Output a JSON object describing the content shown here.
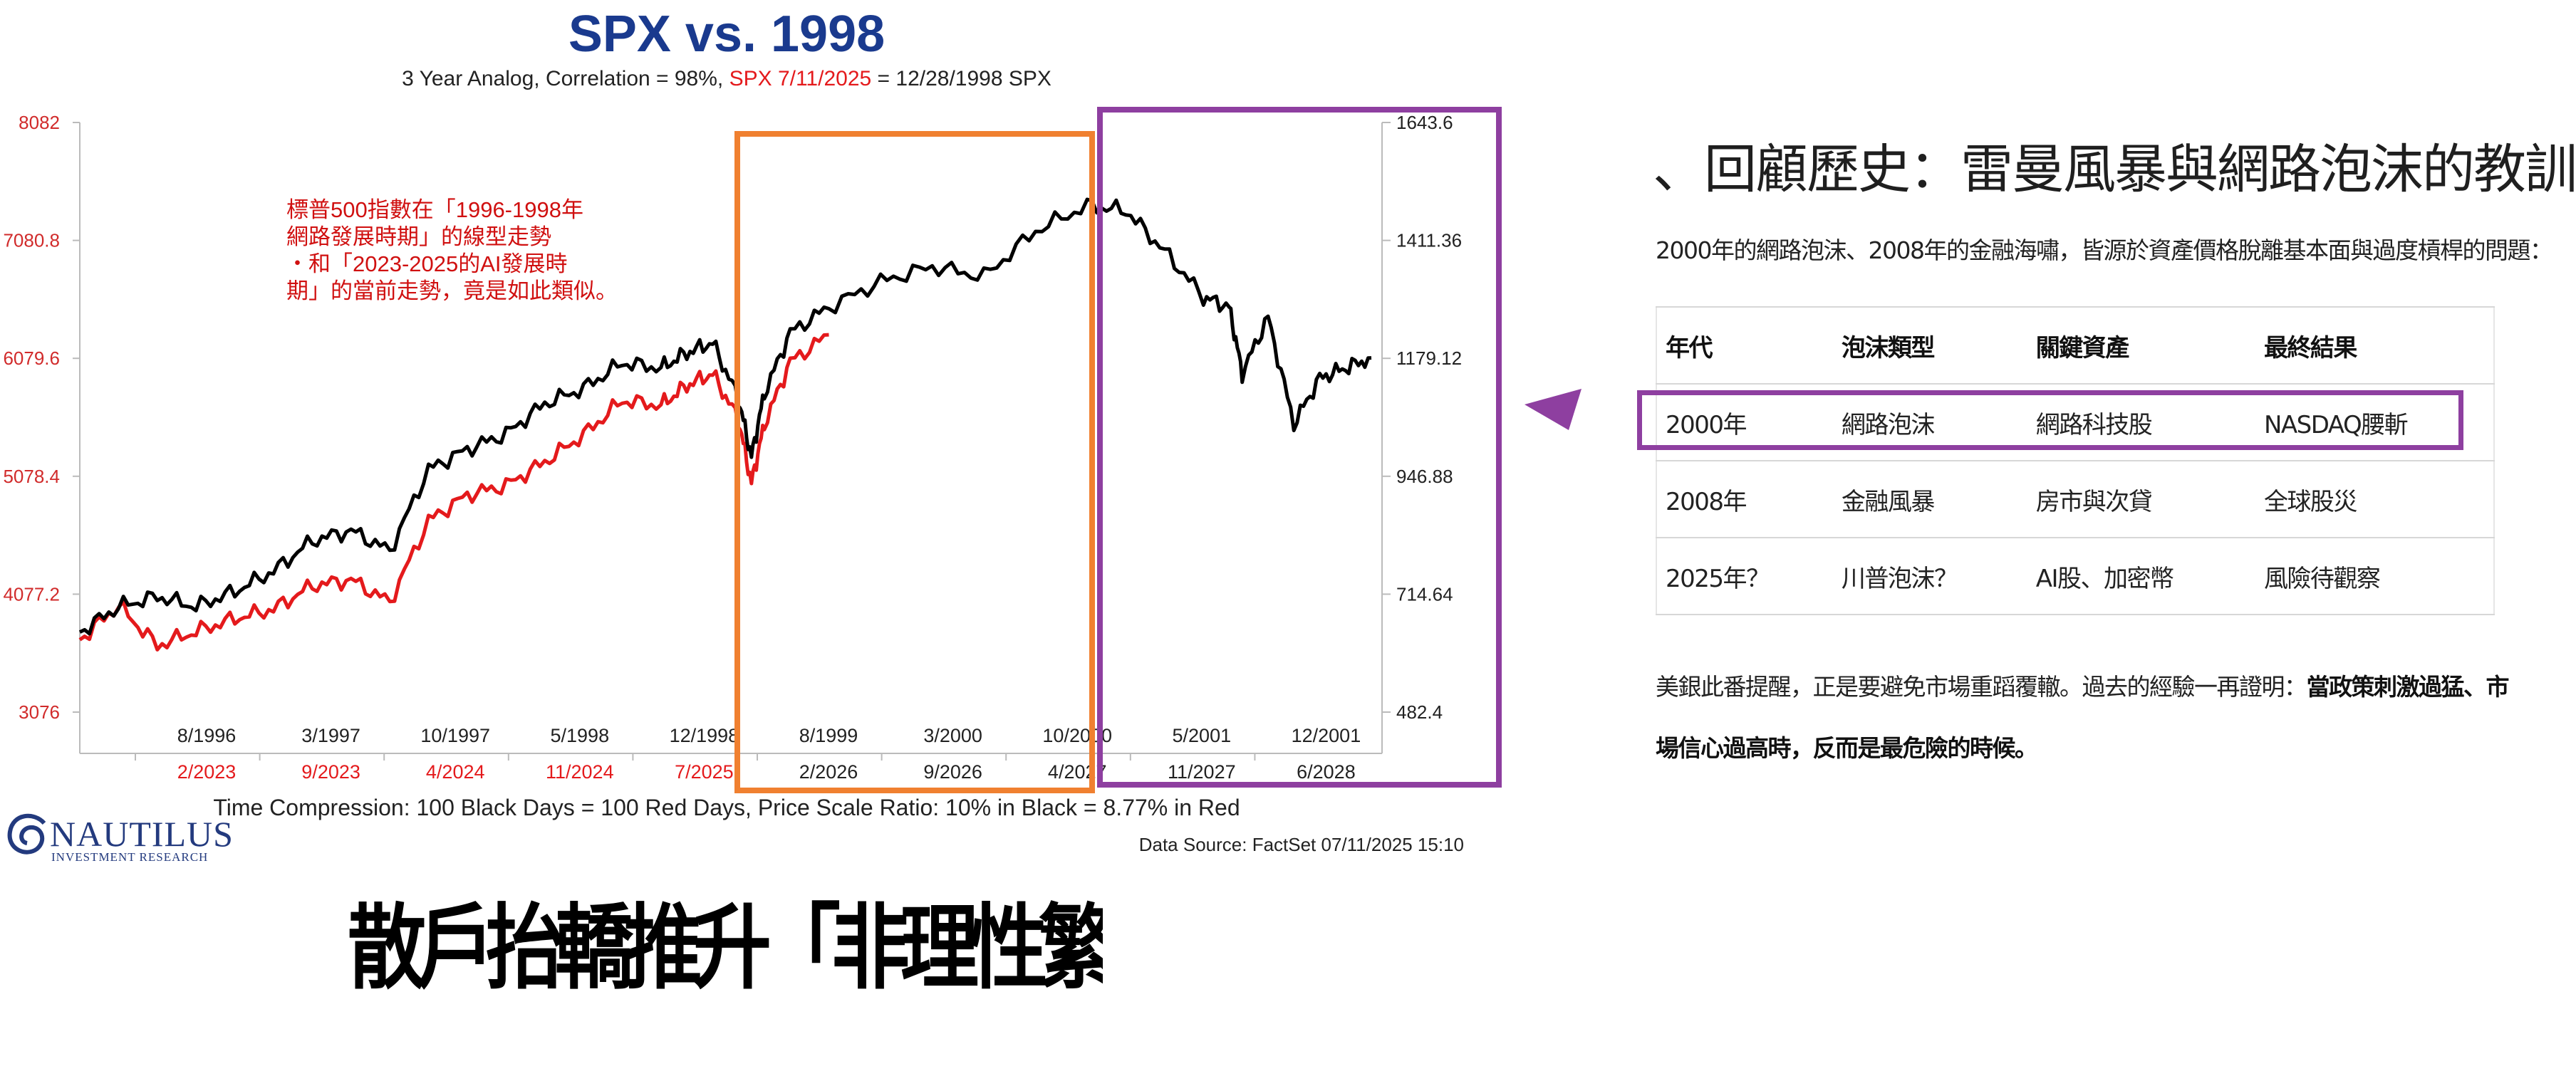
{
  "chart_data": {
    "type": "line",
    "title": "SPX vs. 1998",
    "subtitle_parts": [
      "3 Year Analog, Correlation = 98%, ",
      "SPX 7/11/2025",
      " = 12/28/1998 SPX"
    ],
    "annotation_lines": [
      "標普500指數在「1996-1998年",
      "網路發展時期」的線型走勢",
      "・和「2023-2025的AI發展時",
      "期」的當前走勢，竟是如此類似。"
    ],
    "left_axis": {
      "color": "#d12b2b",
      "ticks": [
        "8082",
        "7080.8",
        "6079.6",
        "5078.4",
        "4077.2",
        "3076"
      ],
      "ylim": [
        3076,
        8082
      ]
    },
    "right_axis": {
      "ticks": [
        "1643.6",
        "1411.36",
        "1179.12",
        "946.88",
        "714.64",
        "482.4"
      ],
      "ylim": [
        482.4,
        1643.6
      ]
    },
    "x_black_ticks": [
      "8/1996",
      "3/1997",
      "10/1997",
      "5/1998",
      "12/1998",
      "8/1999",
      "3/2000",
      "10/2000",
      "5/2001",
      "12/2001"
    ],
    "x_red_ticks": [
      "2/2023",
      "9/2023",
      "4/2024",
      "11/2024",
      "7/2025",
      "2/2026",
      "9/2026",
      "4/2027",
      "11/2027",
      "6/2028"
    ],
    "footer": "Time Compression: 100 Black Days = 100 Red Days,  Price Scale Ratio: 10% in Black = 8.77% in Red",
    "source": "Data Source: FactSet    07/11/2025 15:10",
    "series": [
      {
        "name": "SPX 7/11/2025",
        "color": "#e41a1c",
        "axis": "left",
        "x": [
          0,
          0.03,
          0.06,
          0.09,
          0.12,
          0.15,
          0.18,
          0.21,
          0.24,
          0.27,
          0.3,
          0.33,
          0.36,
          0.39,
          0.42,
          0.45,
          0.47,
          0.49,
          0.51,
          0.52,
          0.53,
          0.55,
          0.58
        ],
        "values": [
          3690,
          3980,
          3640,
          3760,
          3870,
          3950,
          4150,
          4200,
          4010,
          4700,
          4920,
          5000,
          5200,
          5430,
          5720,
          5680,
          5850,
          5950,
          5560,
          5020,
          5520,
          6050,
          6280
        ]
      },
      {
        "name": "SPX 1998",
        "color": "#000000",
        "axis": "right",
        "x": [
          0,
          0.03,
          0.06,
          0.09,
          0.12,
          0.15,
          0.18,
          0.21,
          0.24,
          0.27,
          0.3,
          0.33,
          0.36,
          0.39,
          0.42,
          0.45,
          0.47,
          0.49,
          0.51,
          0.52,
          0.53,
          0.55,
          0.58,
          0.62,
          0.66,
          0.7,
          0.74,
          0.78,
          0.81,
          0.84,
          0.87,
          0.89,
          0.9,
          0.92,
          0.94,
          0.96,
          0.98,
          1.0
        ],
        "values": [
          640,
          690,
          710,
          690,
          720,
          760,
          820,
          840,
          800,
          960,
          1000,
          1030,
          1090,
          1120,
          1170,
          1160,
          1190,
          1210,
          1100,
          985,
          1110,
          1230,
          1280,
          1330,
          1360,
          1340,
          1430,
          1480,
          1470,
          1390,
          1300,
          1280,
          1150,
          1260,
          1050,
          1140,
          1160,
          1180
        ]
      }
    ]
  },
  "logo": {
    "word": "NAUTILUS",
    "sub": "INVESTMENT RESEARCH"
  },
  "headline": "散戶抬轎推升「非理性繁榮」末升段的驅動因素即將出現",
  "right_panel": {
    "title": "、回顧歷史：雷曼風暴與網路泡沫的教訓",
    "intro": "2000年的網路泡沫、2008年的金融海嘯，皆源於資產價格脫離基本面與過度槓桿的問題：",
    "table": {
      "headers": [
        "年代",
        "泡沫類型",
        "關鍵資產",
        "最終結果"
      ],
      "rows": [
        [
          "2000年",
          "網路泡沫",
          "網路科技股",
          "NASDAQ腰斬"
        ],
        [
          "2008年",
          "金融風暴",
          "房市與次貸",
          "全球股災"
        ],
        [
          "2025年？",
          "川普泡沫？",
          "AI股、加密幣",
          "風險待觀察"
        ]
      ]
    },
    "note_plain": "美銀此番提醒，正是要避免市場重蹈覆轍。過去的經驗一再證明：",
    "note_bold": "當政策刺激過猛、市場信心過高時，反而是最危險的時候。"
  },
  "colors": {
    "orange_box": "#f08030",
    "purple_box": "#8e3fa0",
    "title_blue": "#1a3a8e",
    "red": "#e41a1c"
  }
}
